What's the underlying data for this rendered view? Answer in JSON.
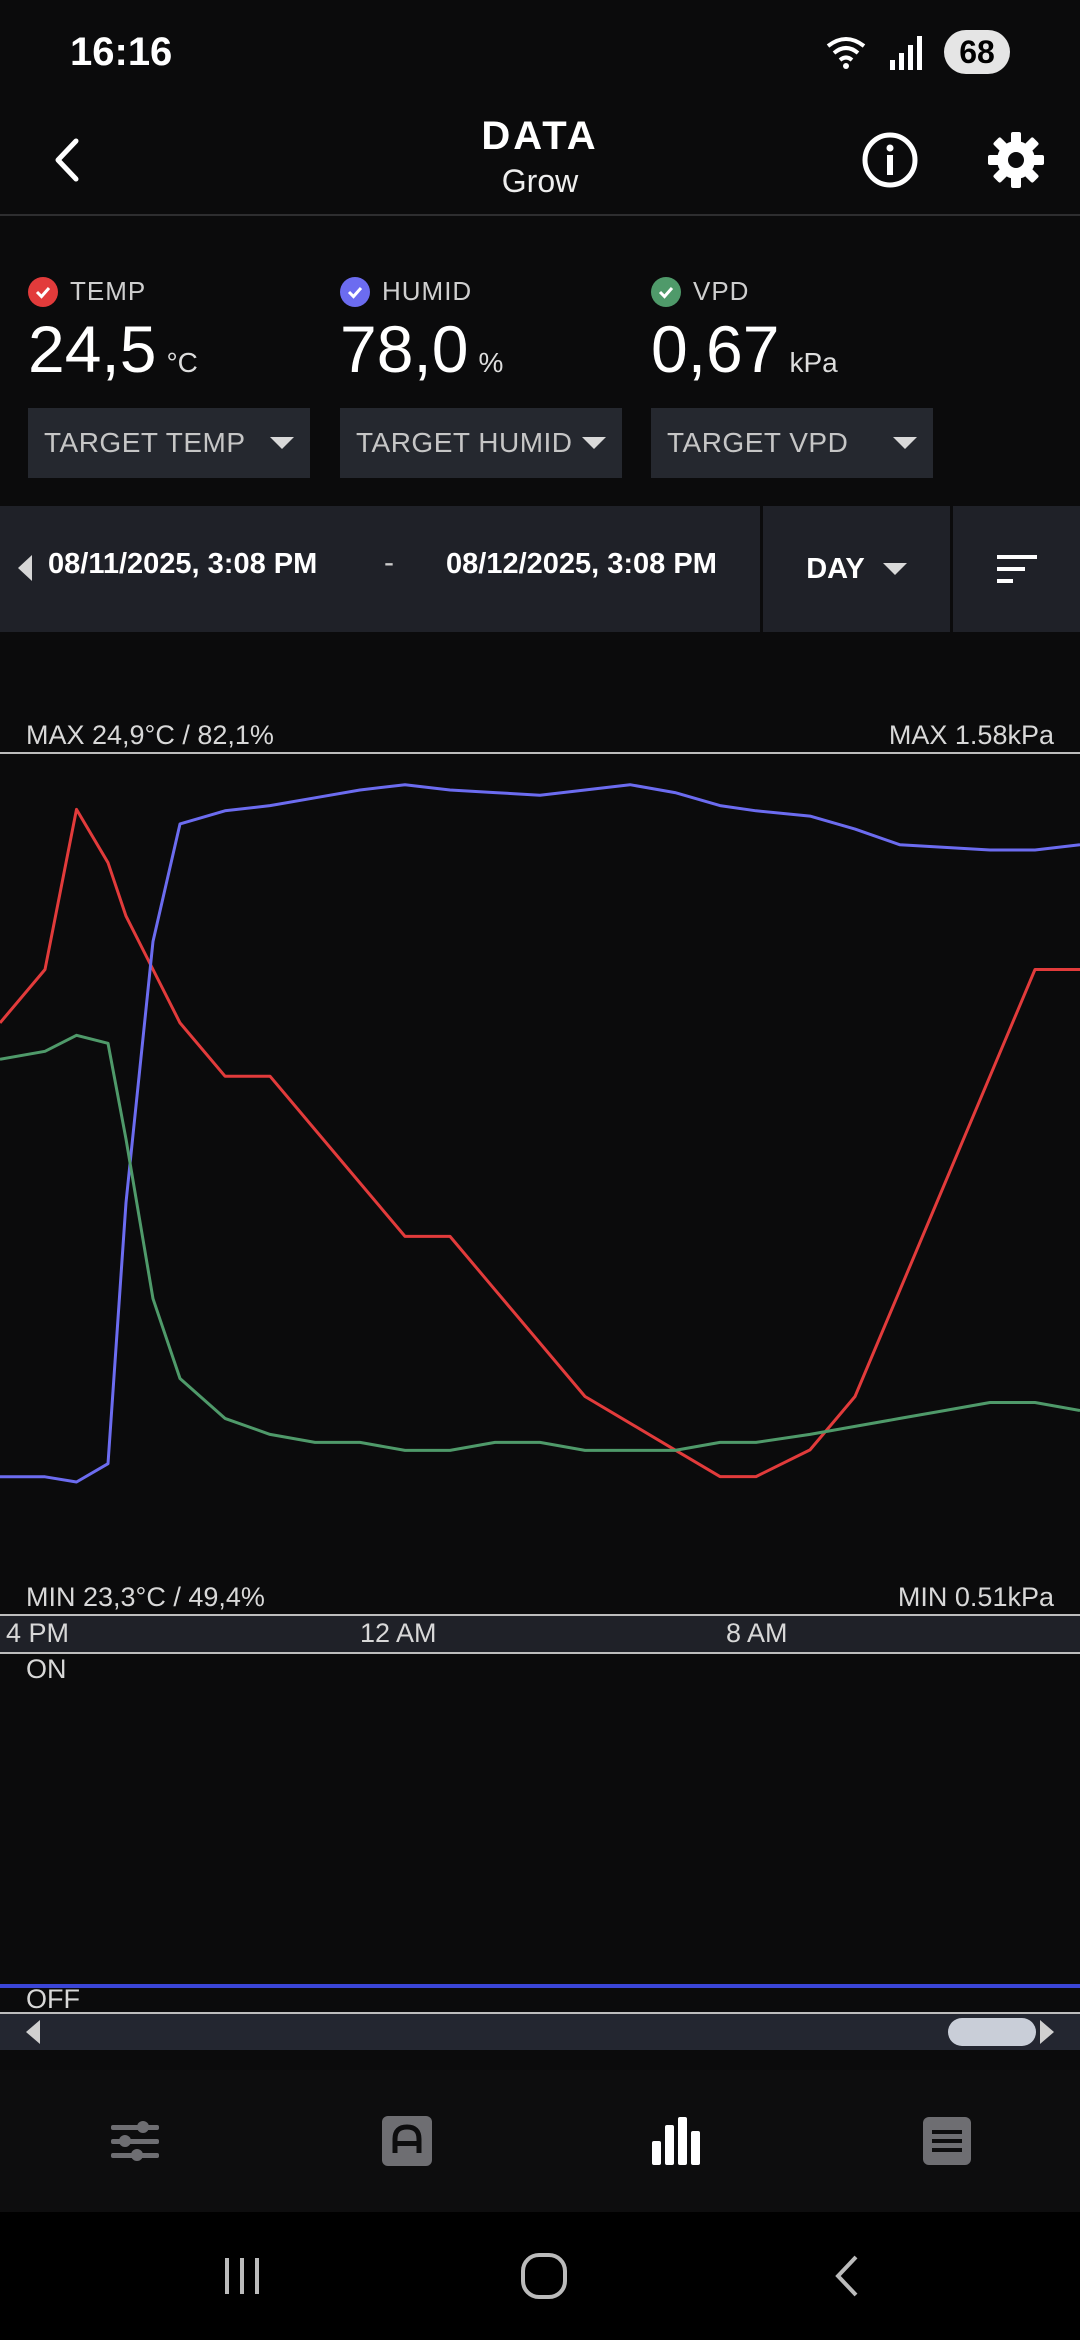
{
  "status_bar": {
    "time": "16:16",
    "battery": "68"
  },
  "header": {
    "title": "DATA",
    "subtitle": "Grow"
  },
  "metrics": [
    {
      "label": "TEMP",
      "value": "24,5",
      "unit": "°C",
      "target": "TARGET TEMP",
      "color": "#e23b3b"
    },
    {
      "label": "HUMID",
      "value": "78,0",
      "unit": "%",
      "target": "TARGET HUMID",
      "color": "#6c6cf0"
    },
    {
      "label": "VPD",
      "value": "0,67",
      "unit": "kPa",
      "target": "TARGET VPD",
      "color": "#4f9a6a"
    }
  ],
  "date_range": {
    "start": "08/11/2025, 3:08 PM",
    "separator": "-",
    "end": "08/12/2025, 3:08 PM",
    "range": "DAY"
  },
  "chart": {
    "max_left": "MAX 24,9°C / 82,1%",
    "max_right": "MAX 1.58kPa",
    "min_left": "MIN 23,3°C / 49,4%",
    "min_right": "MIN 0.51kPa",
    "on_label": "ON",
    "off_label": "OFF"
  },
  "chart_data": {
    "type": "line",
    "x_ticks": [
      "4 PM",
      "12 AM",
      "8 AM"
    ],
    "x_hours": [
      0,
      1,
      1.7,
      2.4,
      2.8,
      3.4,
      4,
      5,
      6,
      7,
      8,
      9,
      10,
      11,
      12,
      13,
      14,
      15,
      16,
      16.8,
      18,
      19,
      20,
      21,
      22,
      23,
      24
    ],
    "series": [
      {
        "color": "#e23b3b",
        "axis": "temp_humid",
        "values": [
          24.4,
          24.5,
          24.8,
          24.7,
          24.6,
          24.5,
          24.4,
          24.3,
          24.3,
          24.2,
          24.1,
          24.0,
          24.0,
          23.9,
          23.8,
          23.7,
          23.65,
          23.6,
          23.55,
          23.55,
          23.6,
          23.7,
          23.9,
          24.1,
          24.3,
          24.5,
          24.5
        ]
      },
      {
        "color": "#6c6cf0",
        "axis": "temp_humid",
        "values": [
          54.5,
          54.5,
          54.3,
          55.0,
          65.0,
          75.0,
          79.5,
          80.0,
          80.2,
          80.5,
          80.8,
          81.0,
          80.8,
          80.7,
          80.6,
          80.8,
          81.0,
          80.7,
          80.2,
          80.0,
          79.8,
          79.3,
          78.7,
          78.6,
          78.5,
          78.5,
          78.7
        ]
      },
      {
        "color": "#4f9a6a",
        "axis": "vpd",
        "values": [
          1.2,
          1.21,
          1.23,
          1.22,
          1.1,
          0.9,
          0.8,
          0.75,
          0.73,
          0.72,
          0.72,
          0.71,
          0.71,
          0.72,
          0.72,
          0.71,
          0.71,
          0.71,
          0.72,
          0.72,
          0.73,
          0.74,
          0.75,
          0.76,
          0.77,
          0.77,
          0.76
        ]
      }
    ],
    "temp_humid_range": {
      "temp": [
        23.3,
        24.9
      ],
      "humid": [
        49.4,
        82.1
      ]
    },
    "vpd_range": [
      0.51,
      1.58
    ],
    "state_series": {
      "values": "OFF",
      "color": "#3b46d8"
    }
  },
  "bottom_nav": [
    "sliders",
    "automation",
    "data",
    "log"
  ],
  "colors": {
    "active_nav": "#ffffff",
    "inactive_nav": "#6e6e72"
  }
}
